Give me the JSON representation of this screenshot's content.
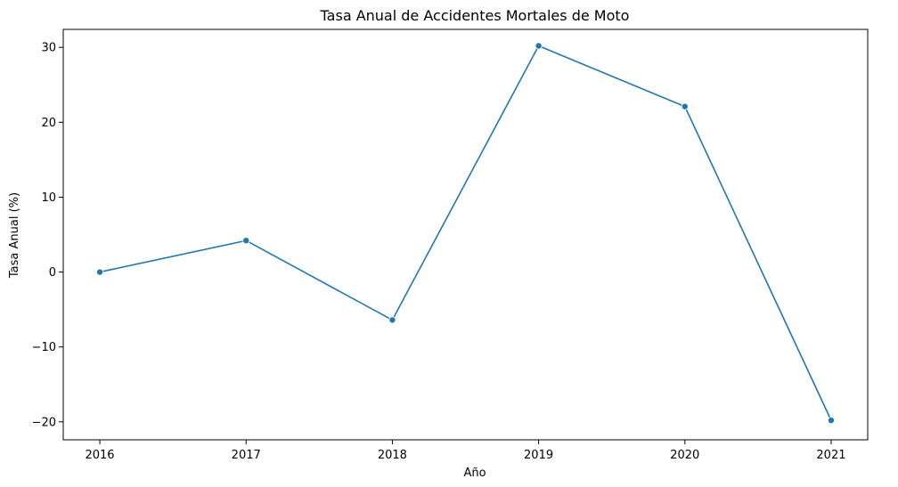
{
  "chart_data": {
    "type": "line",
    "title": "Tasa Anual de Accidentes Mortales de Moto",
    "xlabel": "Año",
    "ylabel": "Tasa Anual (%)",
    "x": [
      2016,
      2017,
      2018,
      2019,
      2020,
      2021
    ],
    "x_tick_labels": [
      "2016",
      "2017",
      "2018",
      "2019",
      "2020",
      "2021"
    ],
    "y_ticks": [
      -20,
      -10,
      0,
      10,
      20,
      30
    ],
    "y_tick_labels": [
      "−20",
      "−10",
      "0",
      "10",
      "20",
      "30"
    ],
    "xlim": [
      2015.75,
      2021.25
    ],
    "ylim": [
      -22.4,
      32.4
    ],
    "grid": false,
    "series": [
      {
        "values": [
          0.0,
          4.2,
          -6.4,
          30.2,
          22.1,
          -19.8
        ],
        "color": "#1f77b4",
        "marker": "circle"
      }
    ]
  }
}
